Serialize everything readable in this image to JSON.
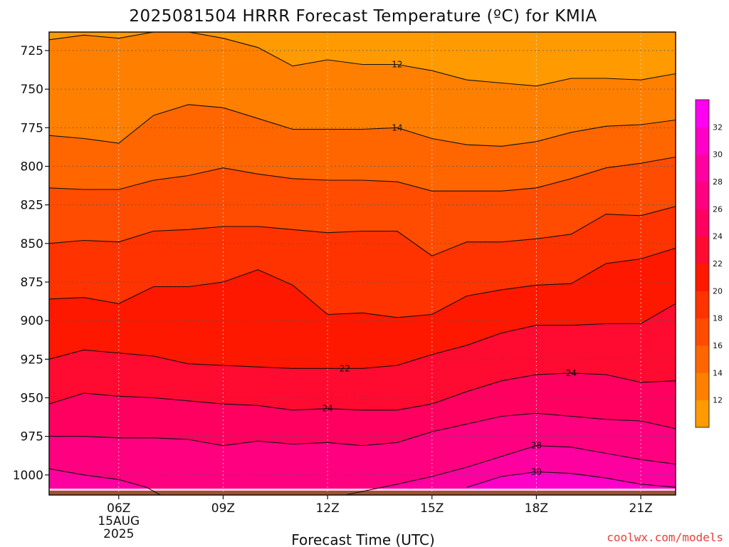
{
  "title": "2025081504 HRRR Forecast Temperature (ºC) for KMIA",
  "credit": "coolwx.com/models",
  "colors": {
    "credit": "#e8403c",
    "ground": "#a0522d",
    "contour_line": "#111111",
    "grid": "#555555"
  },
  "chart_data": {
    "type": "heatmap",
    "title": "2025081504 HRRR Forecast Temperature (ºC) for KMIA",
    "xlabel": "Forecast Time (UTC)",
    "ylabel": "",
    "x_ticks": [
      {
        "label": "06Z",
        "sublabels": [
          "15AUG",
          "2025"
        ],
        "hour": 6
      },
      {
        "label": "09Z",
        "hour": 9
      },
      {
        "label": "12Z",
        "hour": 12
      },
      {
        "label": "15Z",
        "hour": 15
      },
      {
        "label": "18Z",
        "hour": 18
      },
      {
        "label": "21Z",
        "hour": 21
      }
    ],
    "x_range_hours": [
      4,
      22
    ],
    "y_axis": "pressure (hPa)",
    "y_ticks": [
      "725",
      "750",
      "775",
      "800",
      "825",
      "850",
      "875",
      "900",
      "925",
      "950",
      "975",
      "1000"
    ],
    "y_range": [
      713,
      1013
    ],
    "grid": "dotted",
    "colorbar": {
      "placement": "right",
      "ticks": [
        "12",
        "14",
        "16",
        "18",
        "20",
        "22",
        "24",
        "26",
        "28",
        "30",
        "32"
      ],
      "levels": [
        10,
        12,
        14,
        16,
        18,
        20,
        22,
        24,
        26,
        28,
        30,
        32,
        34
      ],
      "colors": [
        "#ff9a00",
        "#ff8000",
        "#ff6600",
        "#ff4c00",
        "#ff3300",
        "#ff1800",
        "#ff0a30",
        "#ff0060",
        "#ff0080",
        "#ff00a0",
        "#ff00c8",
        "#ff00f0"
      ]
    },
    "ground_pressure": 1013,
    "contours": [
      {
        "level": 12,
        "points": [
          [
            4,
            718
          ],
          [
            5,
            715
          ],
          [
            6,
            717
          ],
          [
            7,
            713
          ],
          [
            8,
            713
          ],
          [
            9,
            717
          ],
          [
            10,
            723
          ],
          [
            11,
            735
          ],
          [
            12,
            731
          ],
          [
            13,
            734
          ],
          [
            14,
            734
          ],
          [
            15,
            738
          ],
          [
            16,
            744
          ],
          [
            17,
            746
          ],
          [
            18,
            748
          ],
          [
            19,
            743
          ],
          [
            20,
            743
          ],
          [
            21,
            744
          ],
          [
            22,
            740
          ]
        ],
        "labels": [
          {
            "hour": 14,
            "text": "12"
          }
        ]
      },
      {
        "level": 14,
        "points": [
          [
            4,
            780
          ],
          [
            5,
            782
          ],
          [
            6,
            785
          ],
          [
            7,
            767
          ],
          [
            8,
            760
          ],
          [
            9,
            762
          ],
          [
            10,
            769
          ],
          [
            11,
            776
          ],
          [
            12,
            776
          ],
          [
            13,
            776
          ],
          [
            14,
            775
          ],
          [
            15,
            782
          ],
          [
            16,
            786
          ],
          [
            17,
            787
          ],
          [
            18,
            784
          ],
          [
            19,
            778
          ],
          [
            20,
            774
          ],
          [
            21,
            773
          ],
          [
            22,
            770
          ]
        ],
        "labels": [
          {
            "hour": 14,
            "text": "14"
          }
        ]
      },
      {
        "level": 16,
        "points": [
          [
            4,
            814
          ],
          [
            5,
            815
          ],
          [
            6,
            815
          ],
          [
            7,
            809
          ],
          [
            8,
            806
          ],
          [
            9,
            801
          ],
          [
            10,
            805
          ],
          [
            11,
            808
          ],
          [
            12,
            809
          ],
          [
            13,
            809
          ],
          [
            14,
            810
          ],
          [
            15,
            816
          ],
          [
            16,
            816
          ],
          [
            17,
            816
          ],
          [
            18,
            814
          ],
          [
            19,
            808
          ],
          [
            20,
            801
          ],
          [
            21,
            798
          ],
          [
            22,
            794
          ]
        ]
      },
      {
        "level": 18,
        "points": [
          [
            4,
            850
          ],
          [
            5,
            848
          ],
          [
            6,
            849
          ],
          [
            7,
            842
          ],
          [
            8,
            841
          ],
          [
            9,
            839
          ],
          [
            10,
            839
          ],
          [
            11,
            841
          ],
          [
            12,
            843
          ],
          [
            13,
            842
          ],
          [
            14,
            842
          ],
          [
            15,
            858
          ],
          [
            16,
            849
          ],
          [
            17,
            849
          ],
          [
            18,
            847
          ],
          [
            19,
            844
          ],
          [
            20,
            831
          ],
          [
            21,
            832
          ],
          [
            22,
            826
          ]
        ]
      },
      {
        "level": 20,
        "points": [
          [
            4,
            886
          ],
          [
            5,
            885
          ],
          [
            6,
            889
          ],
          [
            7,
            878
          ],
          [
            8,
            878
          ],
          [
            9,
            875
          ],
          [
            10,
            867
          ],
          [
            11,
            877
          ],
          [
            12,
            896
          ],
          [
            13,
            895
          ],
          [
            14,
            898
          ],
          [
            15,
            896
          ],
          [
            16,
            884
          ],
          [
            17,
            880
          ],
          [
            18,
            877
          ],
          [
            19,
            876
          ],
          [
            20,
            863
          ],
          [
            21,
            860
          ],
          [
            22,
            853
          ]
        ]
      },
      {
        "level": 22,
        "points": [
          [
            4,
            925
          ],
          [
            5,
            919
          ],
          [
            6,
            921
          ],
          [
            7,
            923
          ],
          [
            8,
            928
          ],
          [
            9,
            929
          ],
          [
            10,
            930
          ],
          [
            11,
            931
          ],
          [
            12,
            931
          ],
          [
            13,
            931
          ],
          [
            14,
            929
          ],
          [
            15,
            922
          ],
          [
            16,
            916
          ],
          [
            17,
            908
          ],
          [
            18,
            903
          ],
          [
            19,
            903
          ],
          [
            20,
            902
          ],
          [
            21,
            902
          ],
          [
            22,
            889
          ]
        ],
        "labels": [
          {
            "hour": 12.5,
            "text": "22"
          }
        ]
      },
      {
        "level": 24,
        "points": [
          [
            4,
            954
          ],
          [
            5,
            947
          ],
          [
            6,
            949
          ],
          [
            7,
            950
          ],
          [
            8,
            952
          ],
          [
            9,
            954
          ],
          [
            10,
            955
          ],
          [
            11,
            958
          ],
          [
            12,
            957
          ],
          [
            13,
            958
          ],
          [
            14,
            958
          ],
          [
            15,
            954
          ],
          [
            16,
            946
          ],
          [
            17,
            939
          ],
          [
            18,
            935
          ],
          [
            19,
            934
          ],
          [
            20,
            935
          ],
          [
            21,
            940
          ],
          [
            22,
            939
          ]
        ],
        "labels": [
          {
            "hour": 12,
            "text": "24"
          },
          {
            "hour": 19,
            "text": "24"
          }
        ]
      },
      {
        "level": 26,
        "points": [
          [
            4,
            975
          ],
          [
            5,
            975
          ],
          [
            6,
            976
          ],
          [
            7,
            976
          ],
          [
            8,
            977
          ],
          [
            9,
            981
          ],
          [
            10,
            978
          ],
          [
            11,
            980
          ],
          [
            12,
            979
          ],
          [
            13,
            981
          ],
          [
            14,
            979
          ],
          [
            15,
            972
          ],
          [
            16,
            967
          ],
          [
            17,
            962
          ],
          [
            18,
            960
          ],
          [
            19,
            962
          ],
          [
            20,
            964
          ],
          [
            21,
            965
          ],
          [
            22,
            970
          ]
        ]
      },
      {
        "level": 28,
        "points": [
          [
            4,
            996
          ],
          [
            5,
            1000
          ],
          [
            6,
            1003
          ],
          [
            6.8,
            1008
          ],
          [
            7.2,
            1013
          ],
          [
            12.5,
            1013
          ],
          [
            14,
            1006
          ],
          [
            15,
            1001
          ],
          [
            16,
            995
          ],
          [
            17,
            988
          ],
          [
            18,
            981
          ],
          [
            19,
            982
          ],
          [
            20,
            986
          ],
          [
            21,
            990
          ],
          [
            22,
            993
          ]
        ],
        "labels": [
          {
            "hour": 18,
            "text": "28"
          }
        ]
      },
      {
        "level": 30,
        "points": [
          [
            16,
            1008
          ],
          [
            17,
            1001
          ],
          [
            18,
            998
          ],
          [
            19,
            999
          ],
          [
            20,
            1002
          ],
          [
            21,
            1006
          ],
          [
            22,
            1008
          ]
        ],
        "labels": [
          {
            "hour": 18,
            "text": "30"
          }
        ]
      }
    ]
  }
}
